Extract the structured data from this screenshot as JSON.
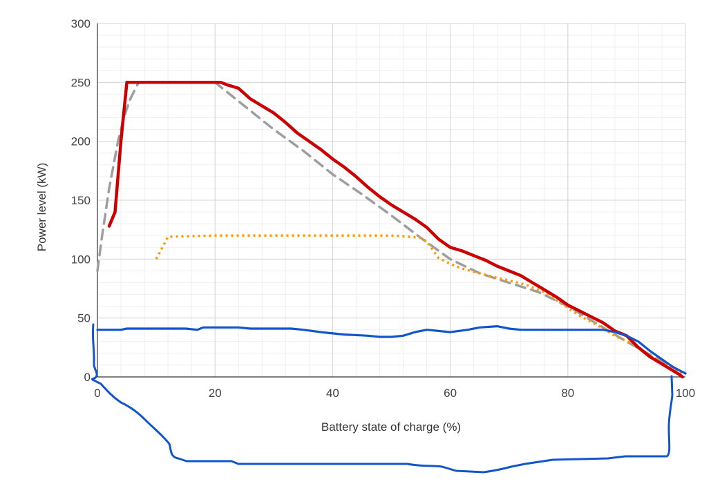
{
  "chart_data": {
    "type": "line",
    "title": "",
    "xlabel": "Battery state of charge (%)",
    "ylabel": "Power level (kW)",
    "xlim": [
      0,
      100
    ],
    "ylim": [
      0,
      300
    ],
    "xticks": [
      0,
      20,
      40,
      60,
      80,
      100
    ],
    "yticks": [
      0,
      50,
      100,
      150,
      200,
      250,
      300
    ],
    "x_tick_labels": [
      "0",
      "20",
      "40",
      "60",
      "80",
      "100"
    ],
    "y_tick_labels": [
      "0",
      "50",
      "100",
      "150",
      "200",
      "250",
      "300"
    ],
    "grid": true,
    "legend": "none",
    "series": [
      {
        "style": "dashed",
        "color": "#9e9e9e",
        "points": [
          [
            0,
            90
          ],
          [
            0.8,
            120
          ],
          [
            2,
            160
          ],
          [
            3.5,
            200
          ],
          [
            4.5,
            220
          ],
          [
            5.5,
            235
          ],
          [
            6.5,
            245
          ],
          [
            7,
            250
          ],
          [
            20,
            250
          ],
          [
            25,
            230
          ],
          [
            30,
            210
          ],
          [
            35,
            192
          ],
          [
            40,
            172
          ],
          [
            45,
            155
          ],
          [
            50,
            137
          ],
          [
            55,
            118
          ],
          [
            60,
            100
          ],
          [
            65,
            88
          ],
          [
            70,
            80
          ],
          [
            75,
            72
          ],
          [
            80,
            60
          ],
          [
            85,
            45
          ],
          [
            90,
            30
          ],
          [
            95,
            16
          ],
          [
            100,
            3
          ]
        ]
      },
      {
        "style": "dotted",
        "color": "#ff9900",
        "points": [
          [
            10,
            100
          ],
          [
            12,
            119
          ],
          [
            20,
            120
          ],
          [
            30,
            120
          ],
          [
            40,
            120
          ],
          [
            50,
            120
          ],
          [
            53,
            119
          ],
          [
            55,
            118
          ],
          [
            56,
            115
          ],
          [
            57,
            108
          ],
          [
            58,
            101
          ],
          [
            60,
            96
          ],
          [
            62,
            92
          ],
          [
            65,
            88
          ],
          [
            68,
            84
          ],
          [
            70,
            82
          ],
          [
            73,
            78
          ],
          [
            76,
            72
          ],
          [
            79,
            62
          ],
          [
            82,
            52
          ],
          [
            85,
            44
          ],
          [
            88,
            35
          ],
          [
            91,
            28
          ],
          [
            94,
            18
          ],
          [
            97,
            10
          ],
          [
            100,
            2
          ]
        ]
      },
      {
        "style": "solid",
        "color": "#cc0000",
        "points": [
          [
            2,
            128
          ],
          [
            3,
            140
          ],
          [
            4,
            200
          ],
          [
            5,
            250
          ],
          [
            21,
            250
          ],
          [
            22,
            248
          ],
          [
            24,
            245
          ],
          [
            26,
            236
          ],
          [
            28,
            230
          ],
          [
            30,
            224
          ],
          [
            32,
            216
          ],
          [
            34,
            207
          ],
          [
            36,
            200
          ],
          [
            38,
            193
          ],
          [
            40,
            185
          ],
          [
            42,
            178
          ],
          [
            44,
            170
          ],
          [
            46,
            161
          ],
          [
            48,
            153
          ],
          [
            50,
            146
          ],
          [
            52,
            140
          ],
          [
            54,
            134
          ],
          [
            56,
            127
          ],
          [
            58,
            117
          ],
          [
            60,
            110
          ],
          [
            62,
            107
          ],
          [
            64,
            103
          ],
          [
            66,
            99
          ],
          [
            68,
            94
          ],
          [
            70,
            90
          ],
          [
            72,
            86
          ],
          [
            74,
            80
          ],
          [
            76,
            74
          ],
          [
            78,
            68
          ],
          [
            80,
            61
          ],
          [
            82,
            56
          ],
          [
            84,
            51
          ],
          [
            86,
            46
          ],
          [
            88,
            39
          ],
          [
            90,
            35
          ],
          [
            92,
            25
          ],
          [
            94,
            17
          ],
          [
            96,
            11
          ],
          [
            98,
            5
          ],
          [
            99,
            2
          ],
          [
            99.5,
            0
          ]
        ]
      },
      {
        "style": "solid",
        "color": "#1155cc",
        "points": [
          [
            0,
            40
          ],
          [
            4,
            40
          ],
          [
            5,
            41
          ],
          [
            15,
            41
          ],
          [
            17,
            40
          ],
          [
            18,
            42
          ],
          [
            24,
            42
          ],
          [
            26,
            41
          ],
          [
            33,
            41
          ],
          [
            35,
            40
          ],
          [
            38,
            38
          ],
          [
            42,
            36
          ],
          [
            46,
            35
          ],
          [
            48,
            34
          ],
          [
            50,
            34
          ],
          [
            52,
            35
          ],
          [
            54,
            38
          ],
          [
            56,
            40
          ],
          [
            58,
            39
          ],
          [
            60,
            38
          ],
          [
            63,
            40
          ],
          [
            65,
            42
          ],
          [
            68,
            43
          ],
          [
            70,
            41
          ],
          [
            72,
            40
          ],
          [
            86,
            40
          ],
          [
            88,
            38
          ],
          [
            90,
            35
          ],
          [
            92,
            30
          ],
          [
            94,
            22
          ],
          [
            96,
            15
          ],
          [
            98,
            8
          ],
          [
            100,
            3
          ]
        ]
      }
    ]
  }
}
